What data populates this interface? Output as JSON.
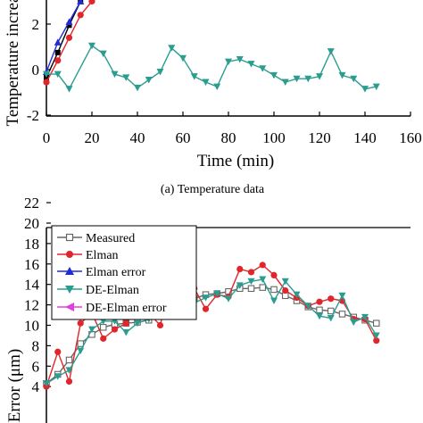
{
  "colors": {
    "black": "#000000",
    "red": "#e0262b",
    "blue": "#1f2bd6",
    "teal": "#2a9d8f",
    "magenta": "#e040e0",
    "gray": "#666666"
  },
  "chart_data": [
    {
      "type": "line",
      "caption": "(a) Temperature data",
      "xlabel": "Time (min)",
      "ylabel": "Temperature increa",
      "xlim": [
        0,
        160
      ],
      "ylim": [
        -2,
        2.9
      ],
      "x_ticks": [
        "0",
        "20",
        "40",
        "60",
        "80",
        "100",
        "120",
        "140",
        "160"
      ],
      "y_ticks": [
        "-2",
        "0",
        "2"
      ],
      "x_tick_values": [
        0,
        20,
        40,
        60,
        80,
        100,
        120,
        140,
        160
      ],
      "y_tick_values": [
        -2,
        0,
        2
      ],
      "grid": false,
      "series": [
        {
          "marker": "square",
          "color": "#000000",
          "x": [
            0,
            5,
            10,
            15
          ],
          "y": [
            -0.35,
            0.75,
            1.95,
            3.0
          ]
        },
        {
          "marker": "circle",
          "color": "#e0262b",
          "x": [
            0,
            5,
            10,
            15,
            20
          ],
          "y": [
            -0.55,
            0.4,
            1.4,
            2.4,
            3.0
          ]
        },
        {
          "marker": "triangle-up",
          "color": "#1f2bd6",
          "x": [
            0,
            5,
            10,
            15
          ],
          "y": [
            -0.1,
            1.2,
            2.1,
            3.0
          ]
        },
        {
          "marker": "triangle-down",
          "color": "#2a9d8f",
          "x": [
            0,
            5,
            10,
            20,
            25,
            30,
            35,
            40,
            45,
            50,
            55,
            60,
            65,
            70,
            75,
            80,
            85,
            90,
            95,
            100,
            105,
            110,
            115,
            120,
            125,
            130,
            135,
            140,
            145
          ],
          "y": [
            -0.2,
            -0.2,
            -0.85,
            1.05,
            0.7,
            -0.2,
            -0.35,
            -0.8,
            -0.45,
            -0.1,
            0.95,
            0.5,
            -0.3,
            -0.55,
            -0.75,
            0.35,
            0.45,
            0.25,
            0.05,
            -0.25,
            -0.55,
            -0.4,
            -0.4,
            -0.3,
            0.8,
            -0.25,
            -0.4,
            -0.85,
            -0.75
          ]
        }
      ]
    },
    {
      "type": "line",
      "ylabel": "Error (μm)",
      "xlim": [
        0,
        160
      ],
      "ylim": [
        3.5,
        23
      ],
      "y_ticks": [
        "4",
        "6",
        "8",
        "10",
        "12",
        "14",
        "16",
        "18",
        "20",
        "22"
      ],
      "y_tick_values": [
        4,
        6,
        8,
        10,
        12,
        14,
        16,
        18,
        20,
        22
      ],
      "grid": false,
      "legend": {
        "position": "top-left",
        "entries": [
          "Measured",
          "Elman",
          "Elman error",
          "DE-Elman",
          "DE-Elman error"
        ]
      },
      "series": [
        {
          "name": "Measured",
          "marker": "square-open",
          "color": "#666666",
          "x": [
            0,
            5,
            10,
            15,
            20,
            25,
            30,
            35,
            40,
            45,
            50,
            55,
            60,
            65,
            70,
            75,
            80,
            85,
            90,
            95,
            100,
            105,
            110,
            115,
            120,
            125,
            130,
            135,
            140,
            145
          ],
          "y": [
            4.3,
            5.2,
            6.6,
            8.2,
            9.1,
            9.8,
            10.1,
            10.2,
            10.3,
            10.5,
            11.0,
            11.6,
            12.2,
            12.6,
            13.0,
            13.1,
            13.3,
            13.6,
            13.6,
            13.7,
            13.5,
            12.9,
            12.4,
            11.8,
            11.5,
            11.4,
            11.1,
            10.8,
            10.5,
            10.2
          ]
        },
        {
          "name": "Elman",
          "marker": "circle",
          "color": "#e0262b",
          "x": [
            0,
            5,
            10,
            15,
            20,
            25,
            30,
            35,
            40,
            45,
            50,
            55,
            60,
            65,
            70,
            75,
            80,
            85,
            90,
            95,
            100,
            105,
            110,
            115,
            120,
            125,
            130,
            135,
            140,
            145
          ],
          "y": [
            4.0,
            7.4,
            4.5,
            10.2,
            11.2,
            8.7,
            9.6,
            10.2,
            11.5,
            11.2,
            10.0,
            14.4,
            11.5,
            13.6,
            11.6,
            13.0,
            12.8,
            15.5,
            15.2,
            15.9,
            14.9,
            13.4,
            12.7,
            11.9,
            12.3,
            12.6,
            12.4,
            10.6,
            10.6,
            8.5
          ]
        },
        {
          "name": "DE-Elman",
          "marker": "triangle-down",
          "color": "#2a9d8f",
          "x": [
            0,
            5,
            10,
            15,
            20,
            25,
            30,
            35,
            40,
            45,
            50,
            55,
            60,
            65,
            70,
            75,
            80,
            85,
            90,
            95,
            100,
            105,
            110,
            115,
            120,
            125,
            130,
            135,
            140,
            145
          ],
          "y": [
            4.3,
            5.0,
            5.6,
            7.5,
            9.6,
            10.4,
            10.4,
            9.3,
            10.2,
            10.6,
            11.9,
            11.3,
            11.6,
            12.2,
            12.7,
            13.1,
            12.6,
            13.9,
            14.3,
            14.5,
            12.4,
            14.3,
            13.0,
            11.9,
            10.9,
            10.7,
            12.9,
            10.3,
            10.8,
            9.0
          ]
        }
      ]
    }
  ]
}
